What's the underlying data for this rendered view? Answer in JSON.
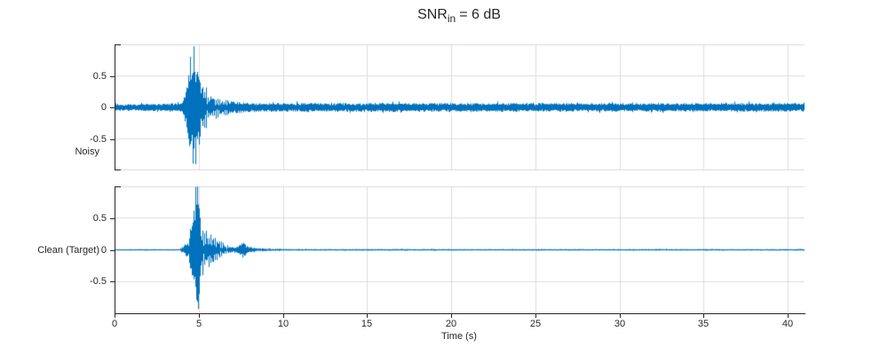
{
  "title": {
    "base": "SNR",
    "sub": "in",
    "rest": "= 6 dB"
  },
  "chart_data": {
    "type": "line",
    "title": "SNR_in = 6 dB",
    "xlabel": "Time (s)",
    "xlim": [
      0,
      41
    ],
    "xticks": [
      "0",
      "5",
      "10",
      "15",
      "20",
      "25",
      "30",
      "35",
      "40"
    ],
    "grid": true,
    "legend": "none",
    "line_color": "#0072BD",
    "grid_color": "#DCDCDC",
    "axis_color": "#262626",
    "subplots": [
      {
        "ylabel": "Noisy",
        "ylim": [
          -1,
          1
        ],
        "yticks": [
          "0.5",
          "0",
          "-0.5"
        ],
        "description": "Noisy speech waveform: broadband noise floor about ±0.07 over 0–41 s, with a speech burst from ~4.1 s to ~7 s peaking near +0.97 / -0.90 around 4.7 s, followed by a decaying oscillatory tail.",
        "noise_floor": 0.055,
        "seed": 12,
        "peak": {
          "t": 4.72,
          "pos": 0.97,
          "neg": 0.9
        },
        "burst_comb": {
          "start": 5.05,
          "end": 6.7,
          "freq": 4.3
        },
        "envelope": [
          [
            0,
            0.012
          ],
          [
            0.4,
            0.02
          ],
          [
            1.0,
            0.045
          ],
          [
            1.8,
            0.06
          ],
          [
            2.6,
            0.055
          ],
          [
            3.4,
            0.065
          ],
          [
            4.0,
            0.07
          ],
          [
            4.15,
            0.18
          ],
          [
            4.35,
            0.55
          ],
          [
            4.55,
            0.88
          ],
          [
            4.72,
            0.95
          ],
          [
            4.95,
            0.8
          ],
          [
            5.1,
            0.55
          ],
          [
            5.3,
            0.42
          ],
          [
            5.6,
            0.3
          ],
          [
            5.9,
            0.22
          ],
          [
            6.2,
            0.17
          ],
          [
            6.6,
            0.13
          ],
          [
            7.0,
            0.1
          ],
          [
            7.6,
            0.085
          ],
          [
            8.5,
            0.07
          ],
          [
            12,
            0.07
          ],
          [
            16,
            0.075
          ],
          [
            20,
            0.068
          ],
          [
            24,
            0.072
          ],
          [
            28,
            0.065
          ],
          [
            32,
            0.07
          ],
          [
            36,
            0.065
          ],
          [
            39,
            0.07
          ],
          [
            41,
            0.065
          ]
        ]
      },
      {
        "ylabel": "Clean (Target)",
        "ylim": [
          -1,
          1
        ],
        "yticks": [
          "0.5",
          "0",
          "-0.5"
        ],
        "description": "Clean target waveform: near-silent (±0.01) except a speech burst from ~4.05 s to ~8 s peaking near ±0.97 around 4.85 s with a decaying comb of oscillation spikes, plus a small secondary burst near 7.5 s (~±0.11).",
        "noise_floor": 0.008,
        "seed": 99,
        "peak": {
          "t": 4.85,
          "pos": 0.99,
          "neg": 0.93
        },
        "burst_comb": {
          "start": 5.05,
          "end": 6.7,
          "freq": 4.0
        },
        "envelope": [
          [
            0,
            0.008
          ],
          [
            1.0,
            0.009
          ],
          [
            2.0,
            0.012
          ],
          [
            3.0,
            0.009
          ],
          [
            3.9,
            0.012
          ],
          [
            4.05,
            0.05
          ],
          [
            4.2,
            0.09
          ],
          [
            4.4,
            0.12
          ],
          [
            4.55,
            0.45
          ],
          [
            4.7,
            0.85
          ],
          [
            4.85,
            0.97
          ],
          [
            5.0,
            0.88
          ],
          [
            5.15,
            0.62
          ],
          [
            5.35,
            0.5
          ],
          [
            5.55,
            0.4
          ],
          [
            5.8,
            0.3
          ],
          [
            6.05,
            0.22
          ],
          [
            6.3,
            0.15
          ],
          [
            6.55,
            0.1
          ],
          [
            6.8,
            0.06
          ],
          [
            7.1,
            0.04
          ],
          [
            7.35,
            0.05
          ],
          [
            7.55,
            0.11
          ],
          [
            7.75,
            0.1
          ],
          [
            7.95,
            0.05
          ],
          [
            8.4,
            0.03
          ],
          [
            9.0,
            0.02
          ],
          [
            10,
            0.014
          ],
          [
            13,
            0.012
          ],
          [
            17,
            0.014
          ],
          [
            21,
            0.011
          ],
          [
            25,
            0.013
          ],
          [
            29,
            0.011
          ],
          [
            33,
            0.013
          ],
          [
            37,
            0.011
          ],
          [
            41,
            0.013
          ]
        ]
      }
    ]
  }
}
